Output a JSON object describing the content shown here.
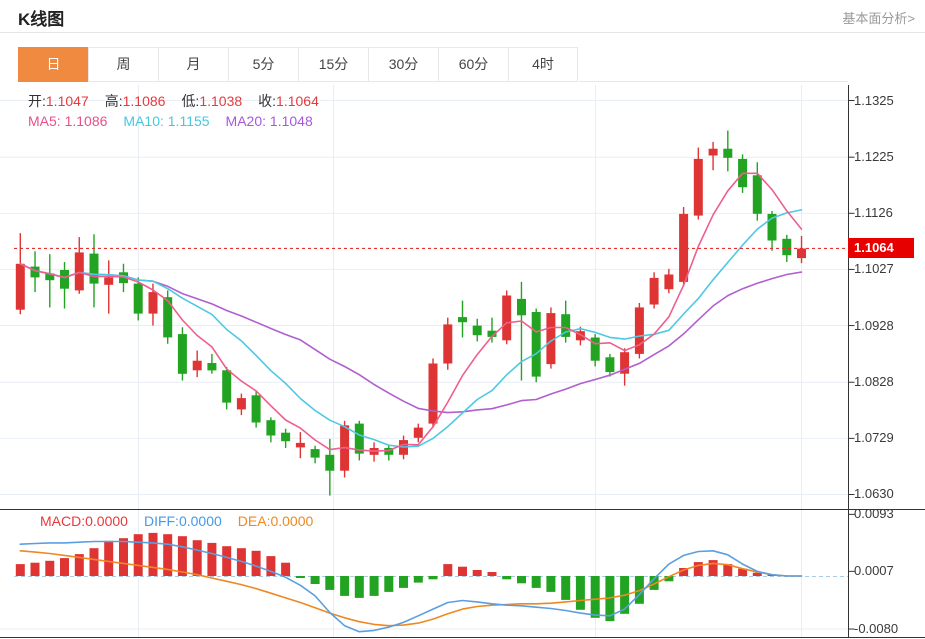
{
  "header": {
    "title": "K线图",
    "link": "基本面分析>"
  },
  "tabs": {
    "items": [
      "日",
      "周",
      "月",
      "5分",
      "15分",
      "30分",
      "60分",
      "4时"
    ],
    "active": "日"
  },
  "ohlc_legend": [
    {
      "label": "开:",
      "value": "1.1047"
    },
    {
      "label": "高:",
      "value": "1.1086"
    },
    {
      "label": "低:",
      "value": "1.1038"
    },
    {
      "label": "收:",
      "value": "1.1064"
    }
  ],
  "ma_legend": [
    {
      "label": "MA5: ",
      "value": "1.1086",
      "color": "#ea4f8b"
    },
    {
      "label": "MA10: ",
      "value": "1.1155",
      "color": "#45c8e0"
    },
    {
      "label": "MA20: ",
      "value": "1.1048",
      "color": "#a957e0"
    }
  ],
  "macd_legend": [
    {
      "label": "MACD:",
      "value": "0.0000",
      "color": "#e8393b"
    },
    {
      "label": "DIFF:",
      "value": "0.0000",
      "color": "#4499e8"
    },
    {
      "label": "DEA:",
      "value": "0.0000",
      "color": "#ef8822"
    }
  ],
  "y_axis": {
    "price_ticks": [
      "1.1325",
      "1.1225",
      "1.1126",
      "1.1027",
      "1.0928",
      "1.0828",
      "1.0729",
      "1.0630"
    ],
    "macd_ticks": [
      "0.0093",
      "0.0007",
      "-0.0080"
    ],
    "current_price": "1.1064"
  },
  "colors": {
    "up": "#df3434",
    "down": "#22a322",
    "ma5": "#ee5f8e",
    "ma10": "#4fc8e2",
    "ma20": "#b05fd0",
    "diff": "#5b9fe0",
    "dea": "#ef8822",
    "tab_active": "#f08a40",
    "price_badge": "#e60000",
    "value_red": "#e8393b",
    "grid": "#e9eef6",
    "axis": "#333333",
    "dashed_zero": "#a8cbe8",
    "price_line": "#e03030"
  },
  "chart_data": {
    "type": "candlestick+macd",
    "title": "K线图",
    "price_axis_range": [
      1.063,
      1.1325
    ],
    "macd_axis_range": [
      -0.008,
      0.0093
    ],
    "current_price": 1.1064,
    "last_candle": {
      "open": 1.1047,
      "high": 1.1086,
      "low": 1.1038,
      "close": 1.1064
    },
    "ma_periods": [
      5,
      10,
      20
    ],
    "candles_ochl_note": "arrays are [open, close, low, high]",
    "candles": [
      [
        1.0956,
        1.1037,
        1.0948,
        1.1091
      ],
      [
        1.1032,
        1.1013,
        1.0987,
        1.1059
      ],
      [
        1.102,
        1.1008,
        1.096,
        1.1054
      ],
      [
        1.1026,
        1.0993,
        1.0958,
        1.104
      ],
      [
        1.099,
        1.1057,
        1.0984,
        1.1084
      ],
      [
        1.1055,
        1.1002,
        1.096,
        1.1089
      ],
      [
        1.1,
        1.1013,
        1.0949,
        1.1043
      ],
      [
        1.1022,
        1.1003,
        1.0987,
        1.1037
      ],
      [
        1.1002,
        1.0949,
        1.0937,
        1.1013
      ],
      [
        1.0949,
        1.0987,
        1.0928,
        1.1002
      ],
      [
        1.0978,
        1.0907,
        1.0896,
        1.099
      ],
      [
        1.0913,
        1.0843,
        1.0831,
        1.0925
      ],
      [
        1.0849,
        1.0866,
        1.0837,
        1.0884
      ],
      [
        1.0862,
        1.0849,
        1.0843,
        1.0878
      ],
      [
        1.0849,
        1.0792,
        1.078,
        1.0855
      ],
      [
        1.078,
        1.08,
        1.077,
        1.0808
      ],
      [
        1.0805,
        1.0757,
        1.0748,
        1.0812
      ],
      [
        1.0761,
        1.0734,
        1.0722,
        1.0766
      ],
      [
        1.0739,
        1.0724,
        1.0712,
        1.0746
      ],
      [
        1.0713,
        1.0721,
        1.0694,
        1.074
      ],
      [
        1.071,
        1.0695,
        1.0685,
        1.0716
      ],
      [
        1.07,
        1.0672,
        1.0628,
        1.0728
      ],
      [
        1.0672,
        1.0752,
        1.066,
        1.076
      ],
      [
        1.0755,
        1.0702,
        1.069,
        1.076
      ],
      [
        1.07,
        1.0712,
        1.0688,
        1.0722
      ],
      [
        1.0712,
        1.07,
        1.069,
        1.0718
      ],
      [
        1.07,
        1.0726,
        1.0692,
        1.0734
      ],
      [
        1.073,
        1.0748,
        1.0722,
        1.0755
      ],
      [
        1.0755,
        1.0861,
        1.0748,
        1.087
      ],
      [
        1.0861,
        1.093,
        1.085,
        1.0942
      ],
      [
        1.0943,
        1.0934,
        1.0907,
        1.0972
      ],
      [
        1.0928,
        1.0911,
        1.09,
        1.094
      ],
      [
        1.0919,
        1.0908,
        1.0898,
        1.0942
      ],
      [
        1.0902,
        1.0981,
        1.0895,
        1.099
      ],
      [
        1.0975,
        1.0946,
        1.0831,
        1.1005
      ],
      [
        1.0952,
        1.0838,
        1.0828,
        1.0958
      ],
      [
        1.086,
        1.095,
        1.0852,
        1.096
      ],
      [
        1.0948,
        1.0908,
        1.0898,
        1.0972
      ],
      [
        1.0902,
        1.0918,
        1.0893,
        1.0926
      ],
      [
        1.0907,
        1.0866,
        1.0856,
        1.0913
      ],
      [
        1.0872,
        1.0846,
        1.0838,
        1.0878
      ],
      [
        1.0843,
        1.0881,
        1.0822,
        1.0888
      ],
      [
        1.0878,
        1.096,
        1.087,
        1.0968
      ],
      [
        1.0965,
        1.1012,
        1.0958,
        1.1022
      ],
      [
        1.0992,
        1.1018,
        1.0985,
        1.1028
      ],
      [
        1.1005,
        1.1125,
        1.0998,
        1.1137
      ],
      [
        1.1122,
        1.1222,
        1.1115,
        1.1242
      ],
      [
        1.1228,
        1.124,
        1.1202,
        1.1252
      ],
      [
        1.124,
        1.1224,
        1.12,
        1.1272
      ],
      [
        1.1222,
        1.1172,
        1.1162,
        1.123
      ],
      [
        1.1193,
        1.1125,
        1.1113,
        1.1216
      ],
      [
        1.1125,
        1.1078,
        1.106,
        1.113
      ],
      [
        1.1081,
        1.1052,
        1.104,
        1.1088
      ],
      [
        1.1047,
        1.1064,
        1.1038,
        1.1086
      ]
    ],
    "macd": {
      "histogram": [
        0.0018,
        0.002,
        0.0023,
        0.0027,
        0.0033,
        0.0042,
        0.0053,
        0.0057,
        0.0063,
        0.0065,
        0.0063,
        0.006,
        0.0054,
        0.005,
        0.0045,
        0.0042,
        0.0038,
        0.003,
        0.002,
        -0.0003,
        -0.0012,
        -0.0021,
        -0.003,
        -0.0033,
        -0.003,
        -0.0024,
        -0.0018,
        -0.001,
        -0.0005,
        0.0018,
        0.0014,
        0.0009,
        0.0006,
        -0.0005,
        -0.0011,
        -0.0018,
        -0.0024,
        -0.0036,
        -0.0051,
        -0.0063,
        -0.0068,
        -0.0057,
        -0.0042,
        -0.0021,
        -0.0008,
        0.0012,
        0.0021,
        0.0024,
        0.0018,
        0.0011,
        0.0005,
        0.0002,
        0,
        0
      ],
      "diff": [
        0.0048,
        0.0049,
        0.005,
        0.005,
        0.0051,
        0.0052,
        0.0052,
        0.0052,
        0.0051,
        0.005,
        0.0048,
        0.0044,
        0.0039,
        0.0034,
        0.0028,
        0.0022,
        0.0015,
        0.0007,
        -0.0002,
        -0.0014,
        -0.003,
        -0.0055,
        -0.0075,
        -0.0084,
        -0.0082,
        -0.0077,
        -0.007,
        -0.006,
        -0.005,
        -0.004,
        -0.0037,
        -0.0039,
        -0.0042,
        -0.0044,
        -0.0045,
        -0.0047,
        -0.0049,
        -0.0052,
        -0.0056,
        -0.0059,
        -0.006,
        -0.005,
        -0.0028,
        -0.0004,
        0.0018,
        0.0031,
        0.0037,
        0.0038,
        0.0032,
        0.0018,
        0.0007,
        0.0002,
        0,
        0
      ],
      "dea": [
        0.0038,
        0.0036,
        0.0034,
        0.0031,
        0.0028,
        0.0025,
        0.0022,
        0.0019,
        0.0016,
        0.0013,
        0.001,
        0.0006,
        0.0002,
        -0.0003,
        -0.0008,
        -0.0013,
        -0.0019,
        -0.0026,
        -0.0033,
        -0.004,
        -0.0048,
        -0.0056,
        -0.0063,
        -0.0069,
        -0.0073,
        -0.0075,
        -0.0074,
        -0.0071,
        -0.0065,
        -0.0057,
        -0.005,
        -0.0046,
        -0.0044,
        -0.0043,
        -0.0042,
        -0.0042,
        -0.0041,
        -0.0039,
        -0.0037,
        -0.0035,
        -0.0033,
        -0.0029,
        -0.0022,
        -0.0012,
        -0.0001,
        0.0009,
        0.0016,
        0.0019,
        0.0017,
        0.0011,
        0.0006,
        0.0002,
        0,
        0
      ]
    }
  }
}
